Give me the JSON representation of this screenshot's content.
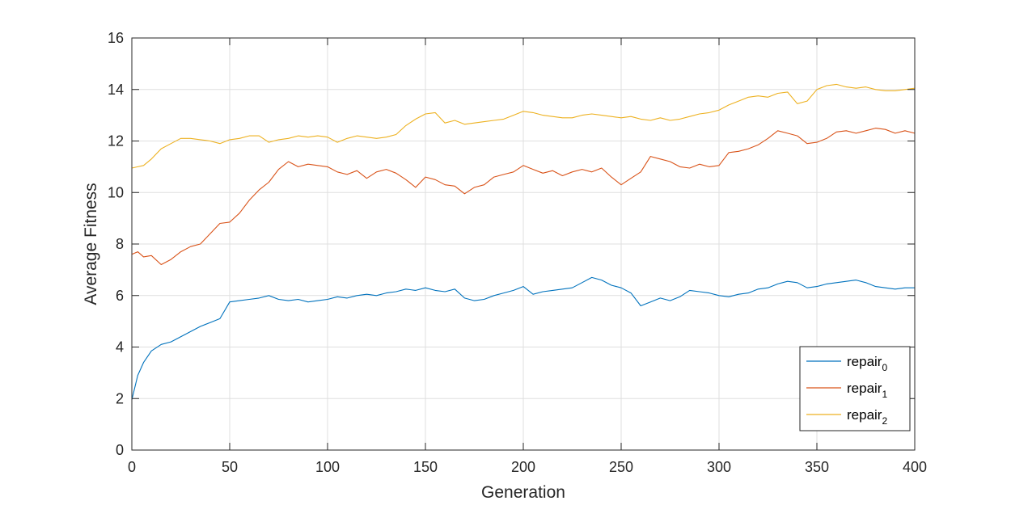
{
  "chart_data": {
    "type": "line",
    "title": "",
    "xlabel": "Generation",
    "ylabel": "Average Fitness",
    "xlim": [
      0,
      400
    ],
    "ylim": [
      0,
      16
    ],
    "xticks": [
      0,
      50,
      100,
      150,
      200,
      250,
      300,
      350,
      400
    ],
    "yticks": [
      0,
      2,
      4,
      6,
      8,
      10,
      12,
      14,
      16
    ],
    "grid": true,
    "legend_position": "bottom-right",
    "x": [
      0,
      3,
      6,
      10,
      15,
      20,
      25,
      30,
      35,
      40,
      45,
      50,
      55,
      60,
      65,
      70,
      75,
      80,
      85,
      90,
      95,
      100,
      105,
      110,
      115,
      120,
      125,
      130,
      135,
      140,
      145,
      150,
      155,
      160,
      165,
      170,
      175,
      180,
      185,
      190,
      195,
      200,
      205,
      210,
      215,
      220,
      225,
      230,
      235,
      240,
      245,
      250,
      255,
      260,
      265,
      270,
      275,
      280,
      285,
      290,
      295,
      300,
      305,
      310,
      315,
      320,
      325,
      330,
      335,
      340,
      345,
      350,
      355,
      360,
      365,
      370,
      375,
      380,
      385,
      390,
      395,
      400
    ],
    "series": [
      {
        "name": "repair",
        "subscript": "0",
        "color": "#0072BD",
        "values": [
          1.95,
          2.9,
          3.4,
          3.85,
          4.1,
          4.2,
          4.4,
          4.6,
          4.8,
          4.95,
          5.1,
          5.75,
          5.8,
          5.85,
          5.9,
          6.0,
          5.85,
          5.8,
          5.85,
          5.75,
          5.8,
          5.85,
          5.95,
          5.9,
          6.0,
          6.05,
          6.0,
          6.1,
          6.15,
          6.25,
          6.2,
          6.3,
          6.2,
          6.15,
          6.25,
          5.9,
          5.8,
          5.85,
          6.0,
          6.1,
          6.2,
          6.35,
          6.05,
          6.15,
          6.2,
          6.25,
          6.3,
          6.5,
          6.7,
          6.6,
          6.4,
          6.3,
          6.1,
          5.6,
          5.75,
          5.9,
          5.8,
          5.95,
          6.2,
          6.15,
          6.1,
          6.0,
          5.95,
          6.05,
          6.1,
          6.25,
          6.3,
          6.45,
          6.55,
          6.5,
          6.3,
          6.35,
          6.45,
          6.5,
          6.55,
          6.6,
          6.5,
          6.35,
          6.3,
          6.25,
          6.3,
          6.3
        ]
      },
      {
        "name": "repair",
        "subscript": "1",
        "color": "#D95319",
        "values": [
          7.6,
          7.7,
          7.5,
          7.55,
          7.2,
          7.4,
          7.7,
          7.9,
          8.0,
          8.4,
          8.8,
          8.85,
          9.2,
          9.7,
          10.1,
          10.4,
          10.9,
          11.2,
          11.0,
          11.1,
          11.05,
          11.0,
          10.8,
          10.7,
          10.85,
          10.55,
          10.8,
          10.9,
          10.75,
          10.5,
          10.2,
          10.6,
          10.5,
          10.3,
          10.25,
          9.95,
          10.2,
          10.3,
          10.6,
          10.7,
          10.8,
          11.05,
          10.9,
          10.75,
          10.85,
          10.65,
          10.8,
          10.9,
          10.8,
          10.95,
          10.6,
          10.3,
          10.55,
          10.8,
          11.4,
          11.3,
          11.2,
          11.0,
          10.95,
          11.1,
          11.0,
          11.05,
          11.55,
          11.6,
          11.7,
          11.85,
          12.1,
          12.4,
          12.3,
          12.2,
          11.9,
          11.95,
          12.1,
          12.35,
          12.4,
          12.3,
          12.4,
          12.5,
          12.45,
          12.3,
          12.4,
          12.3
        ]
      },
      {
        "name": "repair",
        "subscript": "2",
        "color": "#EDB120",
        "values": [
          10.95,
          11.0,
          11.05,
          11.3,
          11.7,
          11.9,
          12.1,
          12.1,
          12.05,
          12.0,
          11.9,
          12.05,
          12.1,
          12.2,
          12.2,
          11.95,
          12.05,
          12.1,
          12.2,
          12.15,
          12.2,
          12.15,
          11.95,
          12.1,
          12.2,
          12.15,
          12.1,
          12.15,
          12.25,
          12.6,
          12.85,
          13.05,
          13.1,
          12.7,
          12.8,
          12.65,
          12.7,
          12.75,
          12.8,
          12.85,
          13.0,
          13.15,
          13.1,
          13.0,
          12.95,
          12.9,
          12.9,
          13.0,
          13.05,
          13.0,
          12.95,
          12.9,
          12.95,
          12.85,
          12.8,
          12.9,
          12.8,
          12.85,
          12.95,
          13.05,
          13.1,
          13.2,
          13.4,
          13.55,
          13.7,
          13.75,
          13.7,
          13.85,
          13.9,
          13.45,
          13.55,
          14.0,
          14.15,
          14.2,
          14.1,
          14.05,
          14.1,
          14.0,
          13.95,
          13.95,
          14.0,
          14.05
        ]
      }
    ]
  }
}
